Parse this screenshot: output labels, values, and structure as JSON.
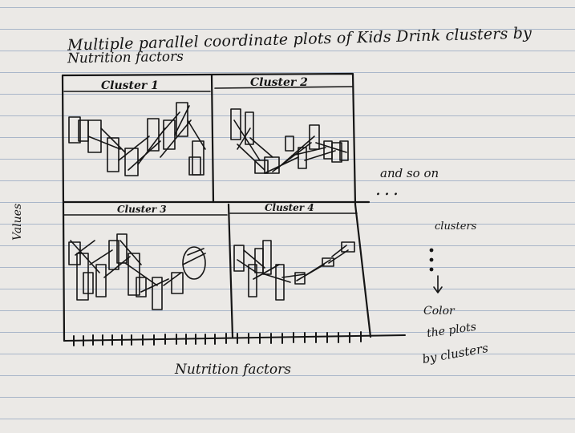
{
  "page": {
    "title_line1": "Multiple parallel coordinate plots of Kids Drink clusters by",
    "title_line2": "Nutrition factors",
    "y_axis_label": "Values",
    "x_axis_label": "Nutrition factors"
  },
  "panels": [
    {
      "title": "Cluster 1"
    },
    {
      "title": "Cluster 2"
    },
    {
      "title": "Cluster 3"
    },
    {
      "title": "Cluster 4"
    }
  ],
  "notes": {
    "and_so_on": "and so on",
    "ellipsis": "...",
    "clusters": "clusters",
    "color": "Color",
    "the_plots": "the plots",
    "by_clusters": "by clusters"
  },
  "colors": {
    "ink": "#151515",
    "paper": "#ebe9e6",
    "rule_line": "#a9b6c9"
  }
}
